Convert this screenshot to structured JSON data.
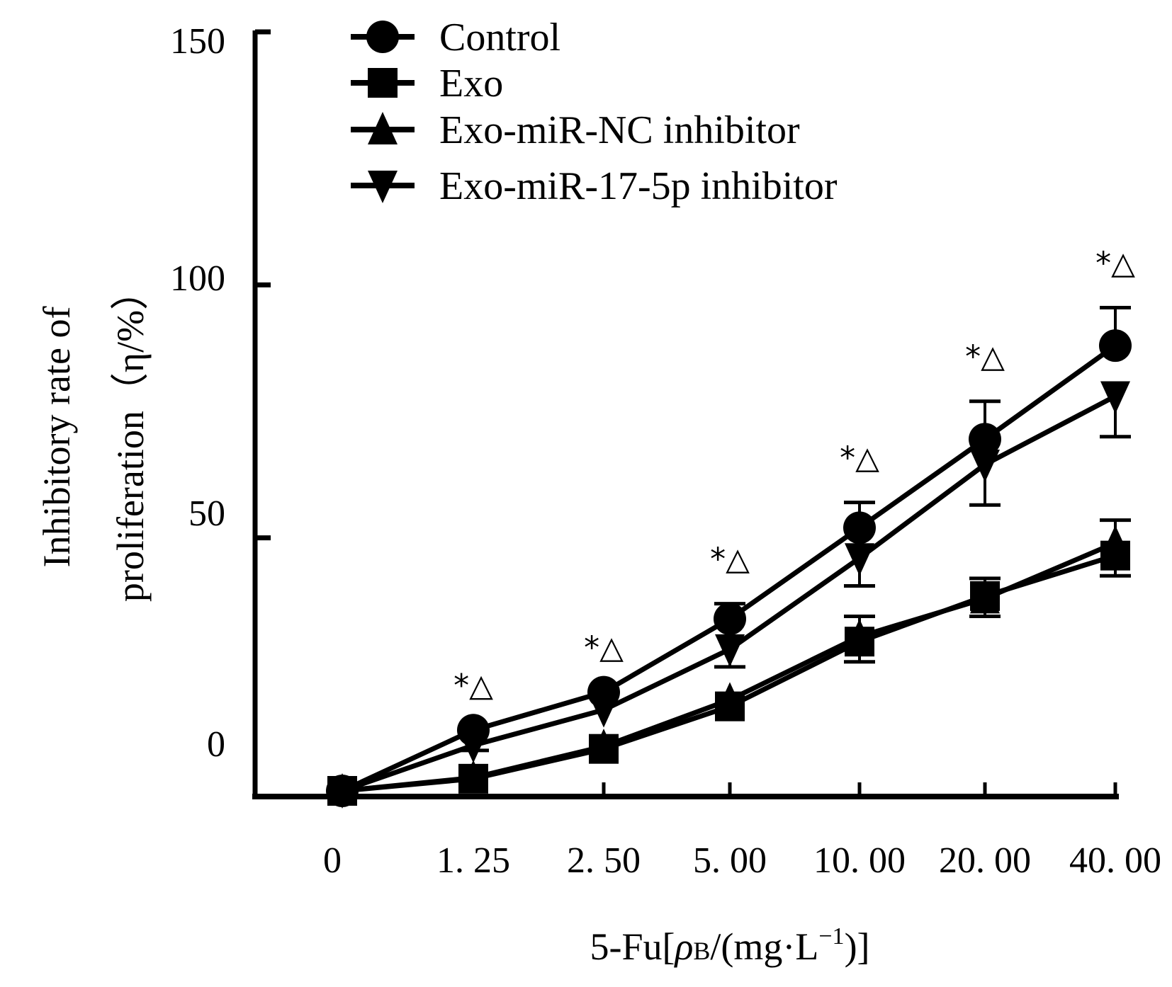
{
  "chart_data": {
    "type": "line",
    "title": "",
    "xlabel": "5-Fu[ρB/(mg·L⁻¹)]",
    "xlabel_parts": {
      "prefix": "5-Fu[",
      "rho": "ρ",
      "sub": "B",
      "mid": "/(mg·L",
      "sup": "−1",
      "suffix": ")]"
    },
    "ylabel_line1": "Inhibitory rate of",
    "ylabel_line2": "proliferation（η/%）",
    "x_categories": [
      "0",
      "1. 25",
      "2. 50",
      "5. 00",
      "10. 00",
      "20. 00",
      "40. 00"
    ],
    "x": [
      0,
      1.25,
      2.5,
      5,
      10,
      20,
      40
    ],
    "y_ticks": [
      {
        "value": 150,
        "label": "150"
      },
      {
        "value": 100,
        "label": "100"
      },
      {
        "value": 50,
        "label": "50"
      },
      {
        "value": 0,
        "label": "0"
      }
    ],
    "ylim": [
      -1,
      150
    ],
    "grid": false,
    "legend_position": "top-center",
    "series": [
      {
        "name": "Control",
        "marker": "circle",
        "values": [
          0,
          12,
          19.5,
          34,
          52,
          69.5,
          88
        ],
        "errors": [
          0,
          0,
          0,
          3,
          5,
          7.5,
          7.5
        ]
      },
      {
        "name": "Exo",
        "marker": "square",
        "values": [
          0,
          2.4,
          8.3,
          16.7,
          29.5,
          38.5,
          46.5
        ],
        "errors": [
          0,
          0,
          0,
          0,
          4,
          4,
          4
        ]
      },
      {
        "name": "Exo-miR-NC inhibitor",
        "marker": "triangle-up",
        "values": [
          0,
          2.6,
          8.8,
          18,
          30.5,
          38,
          49
        ],
        "errors": [
          0,
          0,
          0,
          0,
          4,
          4,
          4.5
        ]
      },
      {
        "name": "Exo-miR-17-5p inhibitor",
        "marker": "triangle-down",
        "values": [
          0,
          9,
          16,
          28,
          46,
          64.5,
          78
        ],
        "errors": [
          0,
          1,
          0,
          3.5,
          5.5,
          8,
          8
        ]
      }
    ],
    "annotations": [
      {
        "x": 1.25,
        "text": "*△"
      },
      {
        "x": 2.5,
        "text": "*△"
      },
      {
        "x": 5,
        "text": "*△"
      },
      {
        "x": 10,
        "text": "*△"
      },
      {
        "x": 20,
        "text": "*△"
      },
      {
        "x": 40,
        "text": "*△"
      }
    ]
  }
}
